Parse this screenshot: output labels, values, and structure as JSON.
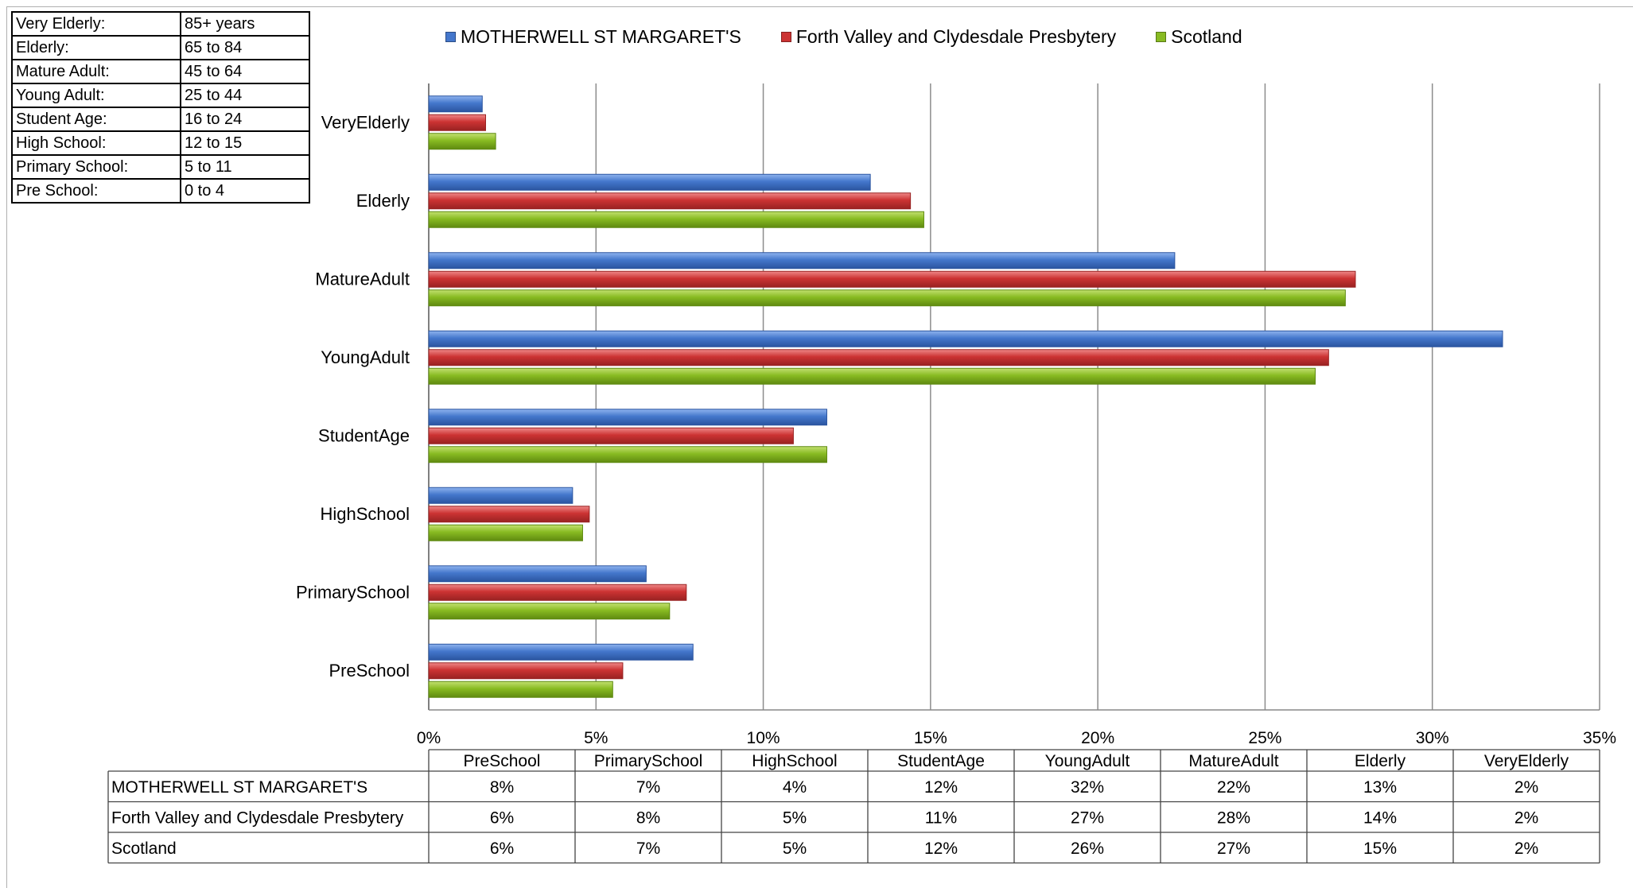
{
  "colors": {
    "series": [
      "#4477cc",
      "#cc3333",
      "#88bb22"
    ],
    "series_dark": [
      "#2b55a0",
      "#992222",
      "#5f8a10"
    ],
    "series_light": [
      "#8fb3ee",
      "#ee8888",
      "#c2e070"
    ],
    "grid": "#8c8c8c"
  },
  "age_key": [
    {
      "label": "Very Elderly:",
      "range": "85+ years"
    },
    {
      "label": "Elderly:",
      "range": "65 to 84"
    },
    {
      "label": "Mature Adult:",
      "range": "45 to 64"
    },
    {
      "label": "Young Adult:",
      "range": "25 to 44"
    },
    {
      "label": "Student Age:",
      "range": "16 to 24"
    },
    {
      "label": "High School:",
      "range": "12 to 15"
    },
    {
      "label": "Primary School:",
      "range": "5 to 11"
    },
    {
      "label": "Pre School:",
      "range": "0 to 4"
    }
  ],
  "chart_data": {
    "type": "bar",
    "orientation": "horizontal",
    "categories": [
      "PreSchool",
      "PrimarySchool",
      "HighSchool",
      "StudentAge",
      "YoungAdult",
      "MatureAdult",
      "Elderly",
      "VeryElderly"
    ],
    "series": [
      {
        "name": "MOTHERWELL ST MARGARET'S",
        "values": [
          7.9,
          6.5,
          4.3,
          11.9,
          32.1,
          22.3,
          13.2,
          1.6
        ]
      },
      {
        "name": "Forth Valley and Clydesdale Presbytery",
        "values": [
          5.8,
          7.7,
          4.8,
          10.9,
          26.9,
          27.7,
          14.4,
          1.7
        ]
      },
      {
        "name": "Scotland",
        "values": [
          5.5,
          7.2,
          4.6,
          11.9,
          26.5,
          27.4,
          14.8,
          2.0
        ]
      }
    ],
    "xlim": [
      0,
      35
    ],
    "xticks": [
      "0%",
      "5%",
      "10%",
      "15%",
      "20%",
      "25%",
      "30%",
      "35%"
    ],
    "grid": true,
    "legend_position": "top",
    "data_table": {
      "rows": [
        {
          "name": "MOTHERWELL ST MARGARET'S",
          "values": [
            "8%",
            "7%",
            "4%",
            "12%",
            "32%",
            "22%",
            "13%",
            "2%"
          ]
        },
        {
          "name": "Forth Valley and Clydesdale Presbytery",
          "values": [
            "6%",
            "8%",
            "5%",
            "11%",
            "27%",
            "28%",
            "14%",
            "2%"
          ]
        },
        {
          "name": "Scotland",
          "values": [
            "6%",
            "7%",
            "5%",
            "12%",
            "26%",
            "27%",
            "15%",
            "2%"
          ]
        }
      ]
    }
  }
}
